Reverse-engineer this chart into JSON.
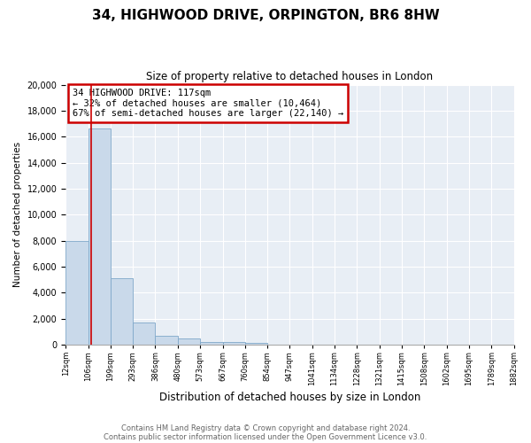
{
  "title1": "34, HIGHWOOD DRIVE, ORPINGTON, BR6 8HW",
  "title2": "Size of property relative to detached houses in London",
  "xlabel": "Distribution of detached houses by size in London",
  "ylabel": "Number of detached properties",
  "footer1": "Contains HM Land Registry data © Crown copyright and database right 2024.",
  "footer2": "Contains public sector information licensed under the Open Government Licence v3.0.",
  "annotation_title": "34 HIGHWOOD DRIVE: 117sqm",
  "annotation_line1": "← 32% of detached houses are smaller (10,464)",
  "annotation_line2": "67% of semi-detached houses are larger (22,140) →",
  "property_size": 117,
  "bar_color": "#c9d9ea",
  "bar_edge_color": "#7fa8c9",
  "annotation_box_color": "#cc0000",
  "vline_color": "#cc0000",
  "background_color": "#e8eef5",
  "ylim": [
    0,
    20000
  ],
  "yticks": [
    0,
    2000,
    4000,
    6000,
    8000,
    10000,
    12000,
    14000,
    16000,
    18000,
    20000
  ],
  "bin_edges": [
    12,
    106,
    199,
    293,
    386,
    480,
    573,
    667,
    760,
    854,
    947,
    1041,
    1134,
    1228,
    1321,
    1415,
    1508,
    1602,
    1695,
    1789,
    1882
  ],
  "bin_labels": [
    "12sqm",
    "106sqm",
    "199sqm",
    "293sqm",
    "386sqm",
    "480sqm",
    "573sqm",
    "667sqm",
    "760sqm",
    "854sqm",
    "947sqm",
    "1041sqm",
    "1134sqm",
    "1228sqm",
    "1321sqm",
    "1415sqm",
    "1508sqm",
    "1602sqm",
    "1695sqm",
    "1789sqm",
    "1882sqm"
  ],
  "bar_heights": [
    8000,
    16600,
    5100,
    1700,
    650,
    480,
    220,
    180,
    150,
    0,
    0,
    0,
    0,
    0,
    0,
    0,
    0,
    0,
    0,
    0
  ]
}
